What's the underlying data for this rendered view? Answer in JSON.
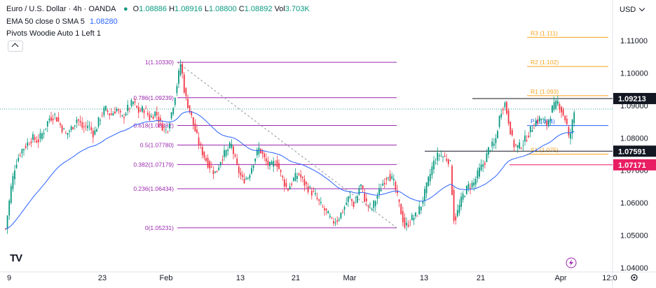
{
  "header": {
    "symbol_line": "Euro / U.S. Dollar · 4h · OANDA",
    "open_key": "O",
    "open": "1.08886",
    "high_key": "H",
    "high": "1.08916",
    "low_key": "L",
    "low": "1.08800",
    "close_key": "C",
    "close": "1.08892",
    "vol_key": "Vol",
    "vol": "3.703K",
    "ema_line_label": "EMA 50 close 0 SMA 5",
    "ema_value": "1.08280",
    "pivots_label": "Pivots Woodie Auto 1 Left 1",
    "currency": "USD",
    "logo": "TV"
  },
  "colors": {
    "up": "#089981",
    "down": "#f23645",
    "ema": "#2962ff",
    "fib": "#9c27b0",
    "pivot": "#f7a21b",
    "black_line": "#131722",
    "pink": "#e91e63",
    "dotted": "#26a69a"
  },
  "chart_data": {
    "type": "candlestick",
    "ylim": [
      1.04,
      1.118
    ],
    "y_ticks": [
      "1.11000",
      "1.10000",
      "1.09000",
      "1.08000",
      "1.07000",
      "1.06000",
      "1.05000",
      "1.04000"
    ],
    "x_ticks": [
      "9",
      "23",
      "Feb",
      "13",
      "21",
      "Mar",
      "13",
      "21",
      "Apr",
      "12:0"
    ],
    "fib_levels": [
      {
        "label": "1(1.10330)",
        "value": 1.1033
      },
      {
        "label": "0.786(1.09239)",
        "value": 1.09239
      },
      {
        "label": "0.618(1.08382)",
        "value": 1.08382
      },
      {
        "label": "0.5(1.07780)",
        "value": 1.0778
      },
      {
        "label": "0.382(1.07179)",
        "value": 1.07179
      },
      {
        "label": "0.236(1.06434)",
        "value": 1.06434
      },
      {
        "label": "0(1.05231)",
        "value": 1.05231
      }
    ],
    "pivot_levels": [
      {
        "label": "R3 (1.111)",
        "value": 1.111
      },
      {
        "label": "R2 (1.102)",
        "value": 1.102
      },
      {
        "label": "R1 (1.093)",
        "value": 1.093
      },
      {
        "label": "P (1.084)",
        "value": 1.0838
      },
      {
        "label": "S1 (1.075)",
        "value": 1.075
      }
    ],
    "price_labels": [
      {
        "label": "1.09213",
        "value": 1.09213,
        "style": "dark"
      },
      {
        "label": "1.07591",
        "value": 1.07591,
        "style": "dark"
      },
      {
        "label": "1.07171",
        "value": 1.07171,
        "style": "pink"
      }
    ],
    "last_price": 1.0889,
    "series": [
      {
        "name": "EUR/USD 4h",
        "path": [
          [
            0,
            1.052
          ],
          [
            8,
            1.065
          ],
          [
            14,
            1.072
          ],
          [
            22,
            1.076
          ],
          [
            30,
            1.078
          ],
          [
            38,
            1.08
          ],
          [
            46,
            1.079
          ],
          [
            54,
            1.082
          ],
          [
            62,
            1.086
          ],
          [
            70,
            1.087
          ],
          [
            78,
            1.084
          ],
          [
            86,
            1.081
          ],
          [
            94,
            1.083
          ],
          [
            102,
            1.086
          ],
          [
            110,
            1.083
          ],
          [
            118,
            1.084
          ],
          [
            126,
            1.081
          ],
          [
            134,
            1.086
          ],
          [
            142,
            1.089
          ],
          [
            150,
            1.087
          ],
          [
            158,
            1.089
          ],
          [
            166,
            1.086
          ],
          [
            174,
            1.089
          ],
          [
            182,
            1.091
          ],
          [
            190,
            1.088
          ],
          [
            198,
            1.089
          ],
          [
            206,
            1.086
          ],
          [
            214,
            1.088
          ],
          [
            222,
            1.084
          ],
          [
            230,
            1.082
          ],
          [
            238,
            1.089
          ],
          [
            244,
            1.096
          ],
          [
            250,
            1.1033
          ],
          [
            256,
            1.093
          ],
          [
            262,
            1.089
          ],
          [
            268,
            1.084
          ],
          [
            276,
            1.078
          ],
          [
            284,
            1.074
          ],
          [
            292,
            1.071
          ],
          [
            300,
            1.069
          ],
          [
            308,
            1.074
          ],
          [
            316,
            1.076
          ],
          [
            322,
            1.078
          ],
          [
            330,
            1.071
          ],
          [
            338,
            1.067
          ],
          [
            346,
            1.068
          ],
          [
            354,
            1.073
          ],
          [
            362,
            1.077
          ],
          [
            370,
            1.073
          ],
          [
            378,
            1.071
          ],
          [
            386,
            1.073
          ],
          [
            394,
            1.068
          ],
          [
            402,
            1.064
          ],
          [
            410,
            1.067
          ],
          [
            418,
            1.069
          ],
          [
            426,
            1.066
          ],
          [
            434,
            1.064
          ],
          [
            442,
            1.062
          ],
          [
            450,
            1.059
          ],
          [
            458,
            1.057
          ],
          [
            466,
            1.054
          ],
          [
            474,
            1.055
          ],
          [
            482,
            1.058
          ],
          [
            490,
            1.062
          ],
          [
            498,
            1.059
          ],
          [
            506,
            1.066
          ],
          [
            514,
            1.06
          ],
          [
            522,
            1.058
          ],
          [
            530,
            1.062
          ],
          [
            538,
            1.066
          ],
          [
            546,
            1.069
          ],
          [
            554,
            1.066
          ],
          [
            562,
            1.059
          ],
          [
            570,
            1.0523
          ],
          [
            578,
            1.055
          ],
          [
            586,
            1.056
          ],
          [
            594,
            1.06
          ],
          [
            602,
            1.066
          ],
          [
            610,
            1.072
          ],
          [
            618,
            1.075
          ],
          [
            626,
            1.074
          ],
          [
            634,
            1.073
          ],
          [
            640,
            1.054
          ],
          [
            646,
            1.058
          ],
          [
            652,
            1.062
          ],
          [
            660,
            1.065
          ],
          [
            668,
            1.066
          ],
          [
            676,
            1.07
          ],
          [
            684,
            1.073
          ],
          [
            690,
            1.077
          ],
          [
            698,
            1.078
          ],
          [
            706,
            1.088
          ],
          [
            712,
            1.091
          ],
          [
            718,
            1.085
          ],
          [
            724,
            1.078
          ],
          [
            732,
            1.077
          ],
          [
            740,
            1.079
          ],
          [
            748,
            1.082
          ],
          [
            756,
            1.085
          ],
          [
            764,
            1.086
          ],
          [
            772,
            1.084
          ],
          [
            780,
            1.089
          ],
          [
            788,
            1.091
          ],
          [
            794,
            1.088
          ],
          [
            800,
            1.085
          ],
          [
            804,
            1.079
          ],
          [
            808,
            1.084
          ],
          [
            812,
            1.0889
          ]
        ]
      }
    ]
  }
}
